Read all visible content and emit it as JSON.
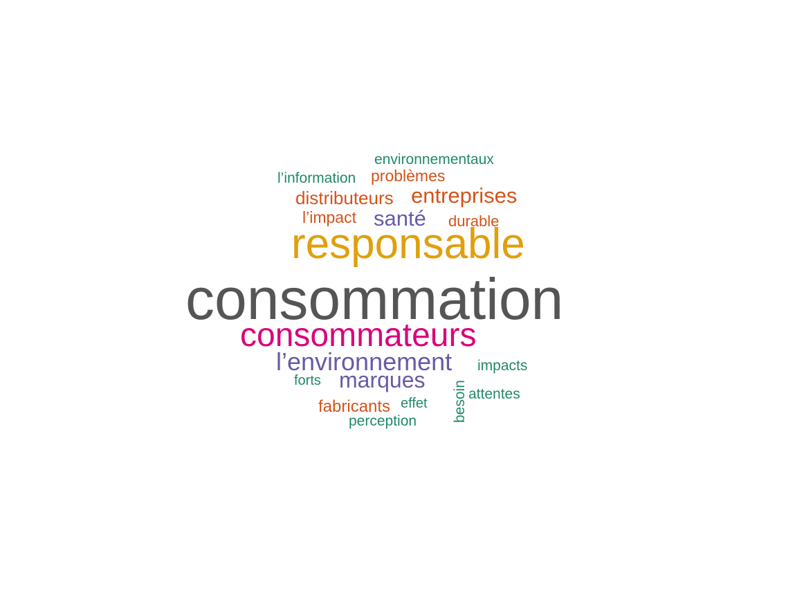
{
  "colors": {
    "dark_grey": "#555555",
    "mustard": "#E09F0C",
    "magenta": "#D9047C",
    "purple": "#675BA6",
    "orange": "#D4531A",
    "teal": "#21896A",
    "background": "#FFFFFF"
  },
  "words": {
    "consommation": "consommation",
    "responsable": "responsable",
    "consommateurs": "consommateurs",
    "environnement": "l’environnement",
    "marques": "marques",
    "entreprises": "entreprises",
    "sante": "santé",
    "distributeurs": "distributeurs",
    "problemes": "problèmes",
    "limpact": "l’impact",
    "durable": "durable",
    "fabricants": "fabricants",
    "environnementaux": "environnementaux",
    "linformation": "l’information",
    "impacts": "impacts",
    "attentes": "attentes",
    "forts": "forts",
    "effet": "effet",
    "perception": "perception",
    "besoin": "besoin"
  }
}
